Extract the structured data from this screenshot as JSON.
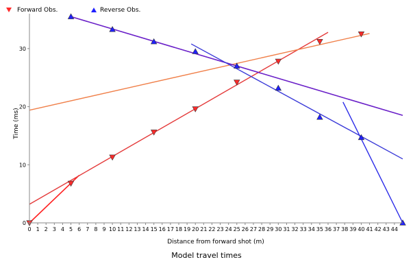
{
  "caption": "Model travel times",
  "chart_data": {
    "type": "scatter",
    "title": "",
    "xlabel": "Distance from forward shot (m)",
    "ylabel": "Time (ms)",
    "xlim": [
      0,
      45
    ],
    "ylim": [
      0,
      36
    ],
    "x_ticks": [
      0,
      1,
      2,
      3,
      4,
      5,
      6,
      7,
      8,
      9,
      10,
      11,
      12,
      13,
      14,
      15,
      16,
      17,
      18,
      19,
      20,
      21,
      22,
      23,
      24,
      25,
      26,
      27,
      28,
      29,
      30,
      31,
      32,
      33,
      34,
      35,
      36,
      37,
      38,
      39,
      40,
      41,
      42,
      43,
      44
    ],
    "y_ticks": [
      0,
      10,
      20,
      30
    ],
    "legend_position": "top-left",
    "grid": false,
    "series": [
      {
        "name": "Forward Obs.",
        "marker": "down-triangle",
        "color": "#ff2a2a",
        "x": [
          0,
          5,
          10,
          15,
          20,
          25,
          30,
          35,
          40
        ],
        "y": [
          0,
          6.8,
          11.3,
          15.6,
          19.6,
          24.2,
          27.8,
          31.2,
          32.5
        ]
      },
      {
        "name": "Reverse Obs.",
        "marker": "up-triangle",
        "color": "#2020ff",
        "x": [
          5,
          10,
          15,
          20,
          25,
          30,
          35,
          40,
          45
        ],
        "y": [
          35.5,
          33.3,
          31.2,
          29.5,
          27.0,
          23.2,
          18.2,
          14.7,
          0
        ]
      }
    ],
    "fit_lines": [
      {
        "color": "#ff2020",
        "width": 1.6,
        "x": [
          0,
          6
        ],
        "y": [
          0,
          8.2
        ]
      },
      {
        "color": "#e43a3a",
        "width": 1.4,
        "x": [
          0,
          36
        ],
        "y": [
          3.2,
          32.8
        ]
      },
      {
        "color": "#f0804a",
        "width": 1.4,
        "x": [
          0,
          41
        ],
        "y": [
          19.4,
          32.6
        ]
      },
      {
        "color": "#6a20c8",
        "width": 1.6,
        "x": [
          5,
          45
        ],
        "y": [
          35.5,
          18.5
        ]
      },
      {
        "color": "#3a3ad8",
        "width": 1.4,
        "x": [
          19.5,
          45
        ],
        "y": [
          30.8,
          11.0
        ]
      },
      {
        "color": "#2a2ae8",
        "width": 1.4,
        "x": [
          37.8,
          45
        ],
        "y": [
          20.8,
          0
        ]
      }
    ]
  }
}
